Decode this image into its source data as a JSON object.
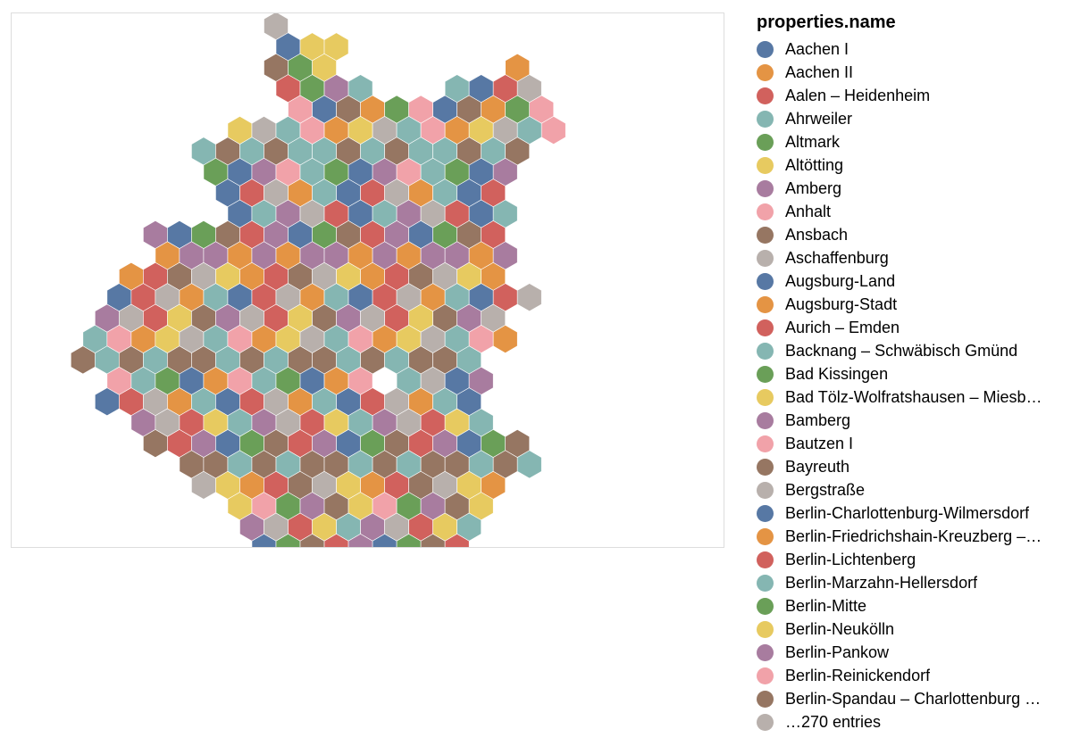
{
  "legend": {
    "title": "properties.name",
    "items": [
      {
        "label": "Aachen I",
        "color": "#5778a4"
      },
      {
        "label": "Aachen II",
        "color": "#e49444"
      },
      {
        "label": "Aalen – Heidenheim",
        "color": "#d1615d"
      },
      {
        "label": "Ahrweiler",
        "color": "#85b6b2"
      },
      {
        "label": "Altmark",
        "color": "#6a9f58"
      },
      {
        "label": "Altötting",
        "color": "#e7ca60"
      },
      {
        "label": "Amberg",
        "color": "#a87c9f"
      },
      {
        "label": "Anhalt",
        "color": "#f1a2a9"
      },
      {
        "label": "Ansbach",
        "color": "#967662"
      },
      {
        "label": "Aschaffenburg",
        "color": "#b8b0ac"
      },
      {
        "label": "Augsburg-Land",
        "color": "#5778a4"
      },
      {
        "label": "Augsburg-Stadt",
        "color": "#e49444"
      },
      {
        "label": "Aurich – Emden",
        "color": "#d1615d"
      },
      {
        "label": "Backnang – Schwäbisch Gmünd",
        "color": "#85b6b2"
      },
      {
        "label": "Bad Kissingen",
        "color": "#6a9f58"
      },
      {
        "label": "Bad Tölz-Wolfratshausen – Miesb…",
        "color": "#e7ca60"
      },
      {
        "label": "Bamberg",
        "color": "#a87c9f"
      },
      {
        "label": "Bautzen I",
        "color": "#f1a2a9"
      },
      {
        "label": "Bayreuth",
        "color": "#967662"
      },
      {
        "label": "Bergstraße",
        "color": "#b8b0ac"
      },
      {
        "label": "Berlin-Charlottenburg-Wilmersdorf",
        "color": "#5778a4"
      },
      {
        "label": "Berlin-Friedrichshain-Kreuzberg –…",
        "color": "#e49444"
      },
      {
        "label": "Berlin-Lichtenberg",
        "color": "#d1615d"
      },
      {
        "label": "Berlin-Marzahn-Hellersdorf",
        "color": "#85b6b2"
      },
      {
        "label": "Berlin-Mitte",
        "color": "#6a9f58"
      },
      {
        "label": "Berlin-Neukölln",
        "color": "#e7ca60"
      },
      {
        "label": "Berlin-Pankow",
        "color": "#a87c9f"
      },
      {
        "label": "Berlin-Reinickendorf",
        "color": "#f1a2a9"
      },
      {
        "label": "Berlin-Spandau – Charlottenburg …",
        "color": "#967662"
      },
      {
        "label": "…270 entries",
        "color": "#b8b0ac"
      }
    ]
  },
  "map": {
    "palette": [
      "#5778a4",
      "#e49444",
      "#d1615d",
      "#85b6b2",
      "#6a9f58",
      "#e7ca60",
      "#a87c9f",
      "#f1a2a9",
      "#967662",
      "#b8b0ac"
    ]
  }
}
